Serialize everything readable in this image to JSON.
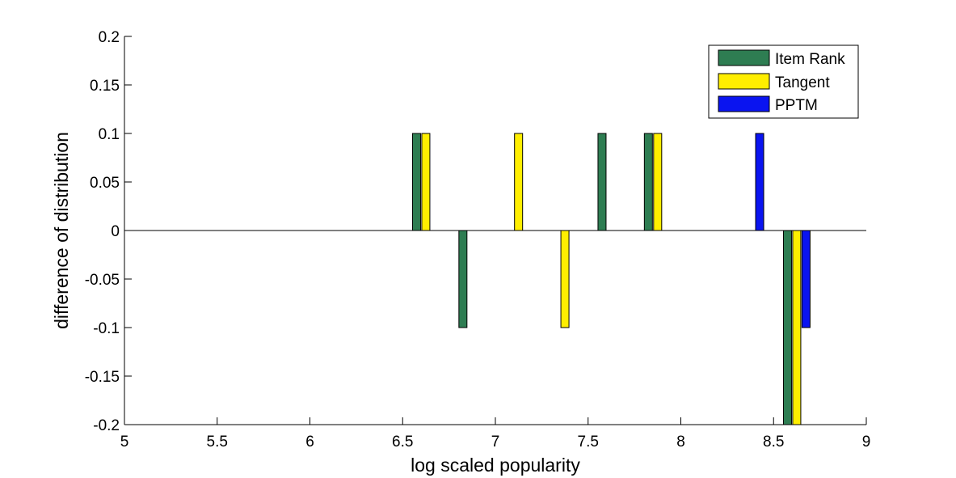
{
  "chart_data": {
    "type": "bar",
    "title": "",
    "xlabel": "log scaled popularity",
    "ylabel": "difference of distribution",
    "xlim": [
      5,
      9
    ],
    "ylim": [
      -0.2,
      0.2
    ],
    "xticks": [
      "5",
      "5.5",
      "6",
      "6.5",
      "7",
      "7.5",
      "8",
      "8.5",
      "9"
    ],
    "yticks": [
      "0.2",
      "0.15",
      "0.1",
      "0.05",
      "0",
      "-0.05",
      "-0.1",
      "-0.15",
      "-0.2"
    ],
    "legend_position": "top-right",
    "grid": false,
    "series": [
      {
        "name": "Item Rank",
        "color": "#2e7d52",
        "points": [
          {
            "x": 6.575,
            "y": 0.1
          },
          {
            "x": 6.825,
            "y": -0.1
          },
          {
            "x": 7.575,
            "y": 0.1
          },
          {
            "x": 7.825,
            "y": 0.1
          },
          {
            "x": 8.575,
            "y": -0.2
          }
        ]
      },
      {
        "name": "Tangent",
        "color": "#ffee00",
        "points": [
          {
            "x": 6.625,
            "y": 0.1
          },
          {
            "x": 7.125,
            "y": 0.1
          },
          {
            "x": 7.375,
            "y": -0.1
          },
          {
            "x": 7.875,
            "y": 0.1
          },
          {
            "x": 8.625,
            "y": -0.2
          }
        ]
      },
      {
        "name": "PPTM",
        "color": "#0a14f0",
        "points": [
          {
            "x": 8.425,
            "y": 0.1
          },
          {
            "x": 8.675,
            "y": -0.1
          }
        ]
      }
    ]
  }
}
